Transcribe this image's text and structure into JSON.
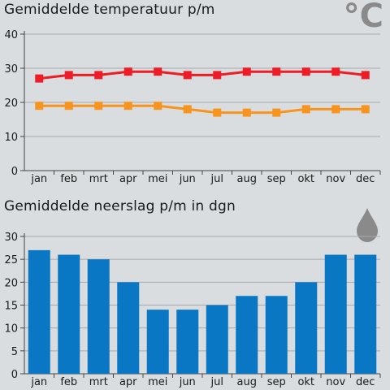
{
  "temp_panel": {
    "unit_symbol": "°C",
    "unit_icon": "thermometer-celsius-icon"
  },
  "rain_panel": {
    "unit_icon": "raindrop-icon"
  },
  "colors": {
    "max_temp": "#ee1c25",
    "min_temp": "#f7941d",
    "bars": "#0a77c4",
    "grid": "#a6aaad",
    "icon": "#8a8a8a"
  },
  "chart_data": [
    {
      "type": "line",
      "title": "Gemiddelde temperatuur p/m",
      "categories": [
        "jan",
        "feb",
        "mrt",
        "apr",
        "mei",
        "jun",
        "jul",
        "aug",
        "sep",
        "okt",
        "nov",
        "dec"
      ],
      "series": [
        {
          "values": [
            27,
            28,
            28,
            29,
            29,
            28,
            28,
            29,
            29,
            29,
            29,
            28
          ],
          "color": "#ee1c25"
        },
        {
          "values": [
            19,
            19,
            19,
            19,
            19,
            18,
            17,
            17,
            17,
            18,
            18,
            18
          ],
          "color": "#f7941d"
        }
      ],
      "yticks": [
        0,
        10,
        20,
        30,
        40
      ],
      "ylim": [
        0,
        40
      ],
      "grid": true
    },
    {
      "type": "bar",
      "title": "Gemiddelde neerslag p/m in dgn",
      "categories": [
        "jan",
        "feb",
        "mrt",
        "apr",
        "mei",
        "jun",
        "jul",
        "aug",
        "sep",
        "okt",
        "nov",
        "dec"
      ],
      "values": [
        27,
        26,
        25,
        20,
        14,
        14,
        15,
        17,
        17,
        20,
        26,
        26
      ],
      "yticks": [
        0,
        5,
        10,
        15,
        20,
        25,
        30
      ],
      "ylim": [
        0,
        30
      ],
      "grid": true
    }
  ]
}
